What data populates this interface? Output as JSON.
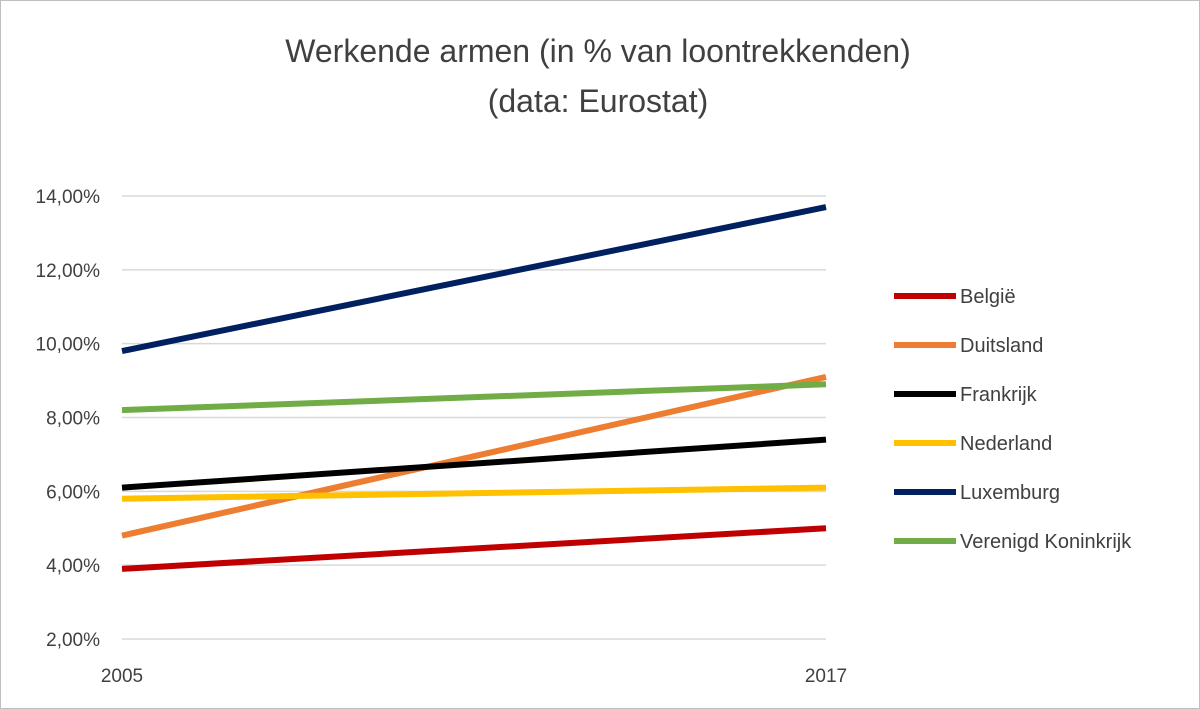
{
  "chart_data": {
    "type": "line",
    "title": "Werkende armen (in % van loontrekkenden)",
    "subtitle": "(data: Eurostat)",
    "x": [
      "2005",
      "2017"
    ],
    "ylim": [
      2,
      14
    ],
    "yticks": [
      {
        "value": 2,
        "label": "2,00%"
      },
      {
        "value": 4,
        "label": "4,00%"
      },
      {
        "value": 6,
        "label": "6,00%"
      },
      {
        "value": 8,
        "label": "8,00%"
      },
      {
        "value": 10,
        "label": "10,00%"
      },
      {
        "value": 12,
        "label": "12,00%"
      },
      {
        "value": 14,
        "label": "14,00%"
      }
    ],
    "grid": true,
    "legend_position": "right",
    "series": [
      {
        "name": "België",
        "color": "#c00000",
        "values": [
          3.9,
          5.0
        ]
      },
      {
        "name": "Duitsland",
        "color": "#ed7d31",
        "values": [
          4.8,
          9.1
        ]
      },
      {
        "name": "Frankrijk",
        "color": "#000000",
        "values": [
          6.1,
          7.4
        ]
      },
      {
        "name": "Nederland",
        "color": "#ffc000",
        "values": [
          5.8,
          6.1
        ]
      },
      {
        "name": "Luxemburg",
        "color": "#002060",
        "values": [
          9.8,
          13.7
        ]
      },
      {
        "name": "Verenigd Koninkrijk",
        "color": "#70ad47",
        "values": [
          8.2,
          8.9
        ]
      }
    ]
  }
}
